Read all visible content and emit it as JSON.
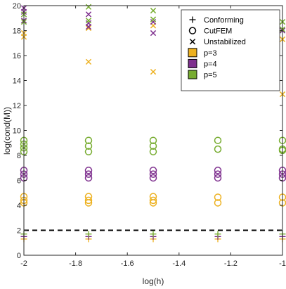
{
  "chart_data": {
    "type": "scatter",
    "xlabel": "log(h)",
    "ylabel": "log(cond(M))",
    "xlim": [
      -2,
      -1
    ],
    "ylim": [
      0,
      20
    ],
    "x_ticks": [
      "-2",
      "-1.8",
      "-1.6",
      "-1.4",
      "-1.2",
      "-1"
    ],
    "y_ticks": [
      "0",
      "2",
      "4",
      "6",
      "8",
      "10",
      "12",
      "14",
      "16",
      "18",
      "20"
    ],
    "x_tick_values": [
      -2,
      -1.8,
      -1.6,
      -1.4,
      -1.2,
      -1
    ],
    "y_tick_values": [
      0,
      2,
      4,
      6,
      8,
      10,
      12,
      14,
      16,
      18,
      20
    ],
    "legend_position": "top-right",
    "legend": {
      "markers": [
        {
          "label": "Conforming",
          "symbol": "plus"
        },
        {
          "label": "CutFEM",
          "symbol": "circle"
        },
        {
          "label": "Unstabilized",
          "symbol": "x"
        }
      ],
      "colors": [
        {
          "label": "p=3",
          "color": "#EDB120"
        },
        {
          "label": "p=4",
          "color": "#7E2F8E"
        },
        {
          "label": "p=5",
          "color": "#77AC30"
        }
      ]
    },
    "reference_line": {
      "y": 2,
      "style": "dashed",
      "color": "#000000"
    },
    "series": [
      {
        "method": "Conforming",
        "degree": "p=3",
        "symbol": "plus",
        "color": "#EDB120",
        "points": [
          [
            -2,
            1.3
          ],
          [
            -1.75,
            1.3
          ],
          [
            -1.5,
            1.3
          ],
          [
            -1.25,
            1.3
          ],
          [
            -1,
            1.3
          ]
        ]
      },
      {
        "method": "Conforming",
        "degree": "p=4",
        "symbol": "plus",
        "color": "#7E2F8E",
        "points": [
          [
            -2,
            1.5
          ],
          [
            -1.75,
            1.5
          ],
          [
            -1.5,
            1.5
          ],
          [
            -1.25,
            1.5
          ],
          [
            -1,
            1.5
          ]
        ]
      },
      {
        "method": "Conforming",
        "degree": "p=5",
        "symbol": "plus",
        "color": "#77AC30",
        "points": [
          [
            -2,
            1.7
          ],
          [
            -1.75,
            1.7
          ],
          [
            -1.5,
            1.7
          ],
          [
            -1.25,
            1.7
          ],
          [
            -1,
            1.7
          ]
        ]
      },
      {
        "method": "CutFEM",
        "degree": "p=3",
        "symbol": "circle",
        "color": "#EDB120",
        "points": [
          [
            -2,
            4.2
          ],
          [
            -2,
            4.4
          ],
          [
            -2,
            4.7
          ],
          [
            -1.75,
            4.2
          ],
          [
            -1.75,
            4.4
          ],
          [
            -1.75,
            4.7
          ],
          [
            -1.5,
            4.2
          ],
          [
            -1.5,
            4.4
          ],
          [
            -1.5,
            4.7
          ],
          [
            -1.25,
            4.2
          ],
          [
            -1.25,
            4.65
          ],
          [
            -1,
            4.2
          ],
          [
            -1,
            4.65
          ]
        ]
      },
      {
        "method": "CutFEM",
        "degree": "p=4",
        "symbol": "circle",
        "color": "#7E2F8E",
        "points": [
          [
            -2,
            6.2
          ],
          [
            -2,
            6.5
          ],
          [
            -2,
            6.8
          ],
          [
            -1.75,
            6.2
          ],
          [
            -1.75,
            6.5
          ],
          [
            -1.75,
            6.8
          ],
          [
            -1.5,
            6.2
          ],
          [
            -1.5,
            6.5
          ],
          [
            -1.5,
            6.8
          ],
          [
            -1.25,
            6.2
          ],
          [
            -1.25,
            6.5
          ],
          [
            -1.25,
            6.8
          ],
          [
            -1,
            6.2
          ],
          [
            -1,
            6.5
          ],
          [
            -1,
            6.8
          ]
        ]
      },
      {
        "method": "CutFEM",
        "degree": "p=5",
        "symbol": "circle",
        "color": "#77AC30",
        "points": [
          [
            -2,
            8.3
          ],
          [
            -2,
            8.6
          ],
          [
            -2,
            8.9
          ],
          [
            -2,
            9.2
          ],
          [
            -1.75,
            8.3
          ],
          [
            -1.75,
            8.75
          ],
          [
            -1.75,
            9.2
          ],
          [
            -1.5,
            8.3
          ],
          [
            -1.5,
            8.75
          ],
          [
            -1.5,
            9.2
          ],
          [
            -1.25,
            8.5
          ],
          [
            -1.25,
            9.2
          ],
          [
            -1,
            8.4
          ],
          [
            -1,
            8.5
          ],
          [
            -1,
            9.2
          ]
        ]
      },
      {
        "method": "Unstabilized",
        "degree": "p=3",
        "symbol": "x",
        "color": "#EDB120",
        "points": [
          [
            -2,
            17.5
          ],
          [
            -2,
            17.8
          ],
          [
            -1.75,
            15.5
          ],
          [
            -1.75,
            18.2
          ],
          [
            -1.5,
            14.7
          ],
          [
            -1.5,
            18.4
          ],
          [
            -1.25,
            18.7
          ],
          [
            -1,
            12.9
          ],
          [
            -1,
            17.3
          ]
        ]
      },
      {
        "method": "Unstabilized",
        "degree": "p=4",
        "symbol": "x",
        "color": "#7E2F8E",
        "points": [
          [
            -2,
            18.8
          ],
          [
            -2,
            19.5
          ],
          [
            -2,
            19.8
          ],
          [
            -1.75,
            18.3
          ],
          [
            -1.75,
            18.6
          ],
          [
            -1.75,
            19.3
          ],
          [
            -1.5,
            17.8
          ],
          [
            -1.5,
            18.7
          ],
          [
            -1.25,
            19.2
          ],
          [
            -1,
            18
          ]
        ]
      },
      {
        "method": "Unstabilized",
        "degree": "p=5",
        "symbol": "x",
        "color": "#77AC30",
        "points": [
          [
            -2,
            18.7
          ],
          [
            -2,
            19.3
          ],
          [
            -1.75,
            18.8
          ],
          [
            -1.75,
            19.9
          ],
          [
            -1.5,
            18.9
          ],
          [
            -1.5,
            19.6
          ],
          [
            -1.25,
            19.4
          ],
          [
            -1,
            18.1
          ],
          [
            -1,
            18.7
          ]
        ]
      }
    ]
  }
}
